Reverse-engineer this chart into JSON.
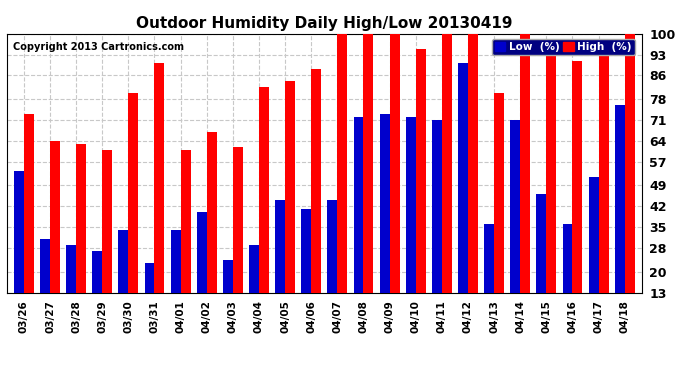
{
  "title": "Outdoor Humidity Daily High/Low 20130419",
  "copyright": "Copyright 2013 Cartronics.com",
  "categories": [
    "03/26",
    "03/27",
    "03/28",
    "03/29",
    "03/30",
    "03/31",
    "04/01",
    "04/02",
    "04/03",
    "04/04",
    "04/05",
    "04/06",
    "04/07",
    "04/08",
    "04/09",
    "04/10",
    "04/11",
    "04/12",
    "04/13",
    "04/14",
    "04/15",
    "04/16",
    "04/17",
    "04/18"
  ],
  "high_values": [
    73,
    64,
    63,
    61,
    80,
    90,
    61,
    67,
    62,
    82,
    84,
    88,
    100,
    100,
    100,
    95,
    100,
    100,
    80,
    100,
    93,
    91,
    96,
    100
  ],
  "low_values": [
    54,
    31,
    29,
    27,
    34,
    23,
    34,
    40,
    24,
    29,
    44,
    41,
    44,
    72,
    73,
    72,
    71,
    90,
    36,
    71,
    46,
    36,
    52,
    76
  ],
  "high_color": "#ff0000",
  "low_color": "#0000cc",
  "bg_color": "#ffffff",
  "grid_color": "#c8c8c8",
  "ylim_min": 13,
  "ylim_max": 100,
  "yticks": [
    13,
    20,
    28,
    35,
    42,
    49,
    57,
    64,
    71,
    78,
    86,
    93,
    100
  ],
  "title_fontsize": 11,
  "copyright_fontsize": 7,
  "legend_low_label": "Low  (%)",
  "legend_high_label": "High  (%)"
}
